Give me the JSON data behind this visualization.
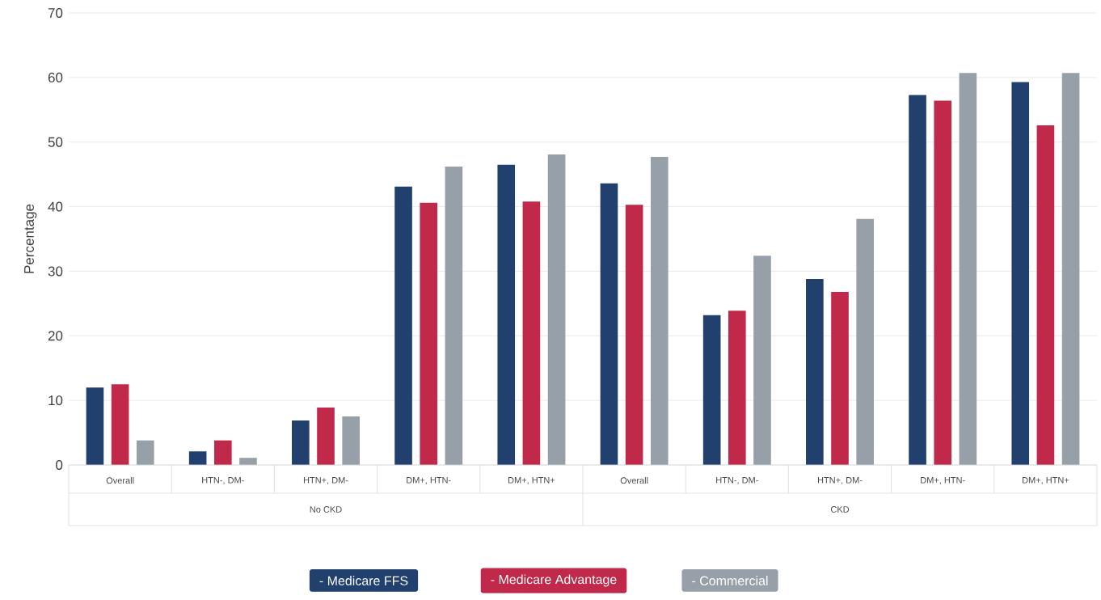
{
  "chart_data": {
    "type": "bar",
    "ylabel": "Percentage",
    "categories": [
      "Overall",
      "HTN-, DM-",
      "HTN+, DM-",
      "DM+, HTN-",
      "DM+, HTN+",
      "Overall",
      "HTN-, DM-",
      "HTN+, DM-",
      "DM+, HTN-",
      "DM+, HTN+"
    ],
    "annotations": [
      "No CKD",
      "CKD"
    ],
    "series": [
      {
        "name": "- Medicare FFS",
        "color": "#22406e",
        "values": [
          12.0,
          2.1,
          6.9,
          43.1,
          46.5,
          43.6,
          23.2,
          28.8,
          57.3,
          59.3
        ]
      },
      {
        "name": "- Medicare Advantage",
        "color": "#c0294a",
        "values": [
          12.5,
          3.8,
          8.9,
          40.6,
          40.8,
          40.3,
          23.9,
          26.8,
          56.4,
          52.6
        ]
      },
      {
        "name": "- Commercial",
        "color": "#97a0a8",
        "values": [
          3.8,
          1.1,
          7.5,
          46.2,
          48.1,
          47.7,
          32.4,
          38.1,
          60.7,
          60.7
        ]
      }
    ],
    "ylim": [
      0,
      70
    ],
    "yticks": [
      0,
      10,
      20,
      30,
      40,
      50,
      60,
      70
    ],
    "grid": "y",
    "legend": "bottom"
  }
}
